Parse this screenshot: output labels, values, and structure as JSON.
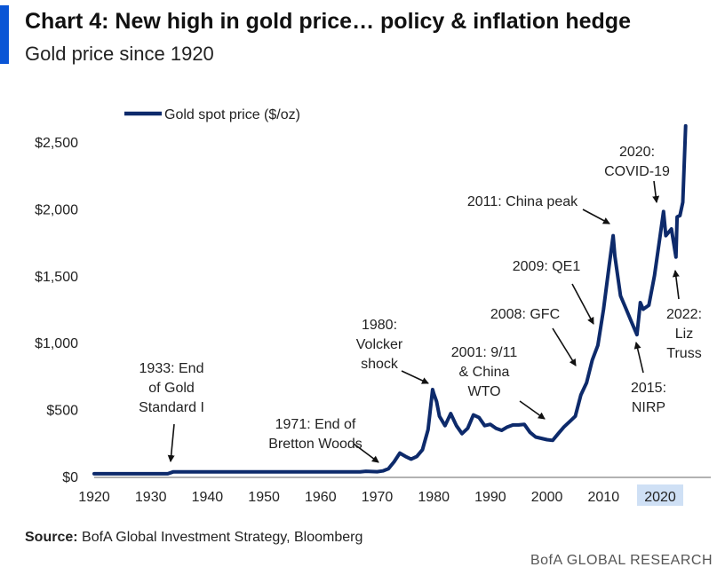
{
  "header": {
    "title": "Chart 4: New high in gold price… policy & inflation hedge",
    "subtitle": "Gold price since 1920"
  },
  "footer": {
    "source_label": "Source:",
    "source_text": " BofA Global Investment Strategy, Bloomberg",
    "brand": "BofA GLOBAL RESEARCH"
  },
  "colors": {
    "line": "#0d2a6b",
    "accent": "#0a55d6",
    "highlight": "#cfe0f5"
  },
  "chart_data": {
    "type": "line",
    "title": "Chart 4: New high in gold price… policy & inflation hedge",
    "subtitle": "Gold price since 1920",
    "legend": {
      "label": "Gold spot price ($/oz)",
      "position": "top-left"
    },
    "xlim": [
      1920,
      2030
    ],
    "ylim": [
      0,
      2600
    ],
    "x_ticks": [
      1920,
      1930,
      1940,
      1950,
      1960,
      1970,
      1980,
      1990,
      2000,
      2010,
      2020
    ],
    "x_tick_labels": [
      "1920",
      "1930",
      "1940",
      "1950",
      "1960",
      "1970",
      "1980",
      "1990",
      "2000",
      "2010",
      "2020"
    ],
    "highlighted_x_tick": "2020",
    "y_ticks": [
      0,
      500,
      1000,
      1500,
      2000,
      2500
    ],
    "y_tick_labels": [
      "$0",
      "$500",
      "$1,000",
      "$1,500",
      "$2,000",
      "$2,500"
    ],
    "grid": false,
    "series": [
      {
        "name": "Gold spot price ($/oz)",
        "x": [
          1920,
          1933,
          1934,
          1967,
          1968,
          1970,
          1971,
          1972,
          1973,
          1974,
          1975,
          1976,
          1977,
          1978,
          1979,
          1979.8,
          1980,
          1980.5,
          1981,
          1982,
          1983,
          1984,
          1985,
          1986,
          1987,
          1988,
          1989,
          1990,
          1991,
          1992,
          1993,
          1994,
          1995,
          1996,
          1997,
          1998,
          1999,
          2000,
          2001,
          2002,
          2003,
          2004,
          2005,
          2006,
          2007,
          2008,
          2009,
          2010,
          2011,
          2011.7,
          2012,
          2013,
          2014,
          2015,
          2015.9,
          2016.5,
          2017,
          2018,
          2019,
          2020,
          2020.6,
          2021,
          2022,
          2022.8,
          2023,
          2023.5,
          2024,
          2024.5
        ],
        "y": [
          20.67,
          20.67,
          35,
          35,
          39,
          36,
          42,
          58,
          110,
          175,
          150,
          130,
          150,
          200,
          350,
          650,
          620,
          560,
          450,
          380,
          470,
          380,
          320,
          360,
          460,
          440,
          380,
          390,
          360,
          345,
          370,
          385,
          385,
          390,
          330,
          295,
          285,
          275,
          270,
          320,
          370,
          410,
          450,
          610,
          700,
          870,
          980,
          1250,
          1580,
          1800,
          1650,
          1350,
          1250,
          1150,
          1060,
          1300,
          1250,
          1280,
          1500,
          1800,
          1980,
          1800,
          1850,
          1640,
          1940,
          1950,
          2050,
          2620
        ]
      }
    ],
    "annotations": [
      {
        "text": [
          "1933: End",
          "of Gold",
          "Standard I"
        ],
        "x": 1933,
        "y": 35
      },
      {
        "text": [
          "1971: End of",
          "Bretton Woods"
        ],
        "x": 1971,
        "y": 42
      },
      {
        "text": [
          "1980:",
          "Volcker",
          "shock"
        ],
        "x": 1980,
        "y": 650
      },
      {
        "text": [
          "2001: 9/11",
          "& China",
          "WTO"
        ],
        "x": 2001,
        "y": 270
      },
      {
        "text": [
          "2008: GFC"
        ],
        "x": 2008,
        "y": 870
      },
      {
        "text": [
          "2009: QE1"
        ],
        "x": 2009,
        "y": 980
      },
      {
        "text": [
          "2011: China peak"
        ],
        "x": 2011,
        "y": 1800
      },
      {
        "text": [
          "2015:",
          "NIRP"
        ],
        "x": 2015,
        "y": 1060
      },
      {
        "text": [
          "2020:",
          "COVID-19"
        ],
        "x": 2020,
        "y": 1980
      },
      {
        "text": [
          "2022:",
          "Liz",
          "Truss"
        ],
        "x": 2022,
        "y": 1640
      }
    ]
  }
}
